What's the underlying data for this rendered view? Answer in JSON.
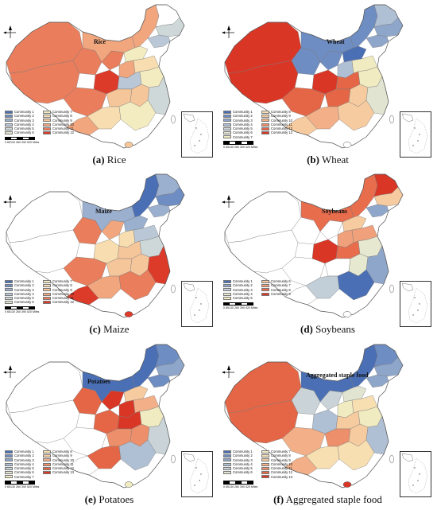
{
  "panels": [
    {
      "id": "a",
      "letter": "(a)",
      "name": "Rice",
      "map_title": "Rice",
      "legend": [
        {
          "label": "Community 1",
          "color": "#4a6fb5"
        },
        {
          "label": "Community 2",
          "color": "#6e8dc2"
        },
        {
          "label": "Community 3",
          "color": "#9bb0cf"
        },
        {
          "label": "Community 4",
          "color": "#b9c7d6"
        },
        {
          "label": "Community 5",
          "color": "#cfd8d9"
        },
        {
          "label": "Community 6",
          "color": "#e3e6cf"
        },
        {
          "label": "Community 7",
          "color": "#f3ecc0"
        },
        {
          "label": "Community 8",
          "color": "#f7ddb0"
        },
        {
          "label": "Community 9",
          "color": "#f6c69b"
        },
        {
          "label": "Community 10",
          "color": "#f1a67e"
        },
        {
          "label": "Community 11",
          "color": "#ea7d5b"
        },
        {
          "label": "Community 12",
          "color": "#dd3b2a"
        }
      ]
    },
    {
      "id": "b",
      "letter": "(b)",
      "name": "Wheat",
      "map_title": "Wheat",
      "legend": [
        {
          "label": "Community 1",
          "color": "#4a6fb5"
        },
        {
          "label": "Community 2",
          "color": "#6e8dc2"
        },
        {
          "label": "Community 3",
          "color": "#8fa6cb"
        },
        {
          "label": "Community 4",
          "color": "#b0c0d4"
        },
        {
          "label": "Community 5",
          "color": "#cad4d8"
        },
        {
          "label": "Community 6",
          "color": "#e1e4d0"
        },
        {
          "label": "Community 7",
          "color": "#f1ebc2"
        },
        {
          "label": "Community 8",
          "color": "#f7dfb2"
        },
        {
          "label": "Community 9",
          "color": "#f6cba0"
        },
        {
          "label": "Community 10",
          "color": "#f3b088"
        },
        {
          "label": "Community 11",
          "color": "#ed8f6a"
        },
        {
          "label": "Community 12",
          "color": "#e46646"
        },
        {
          "label": "Community 13",
          "color": "#d93626"
        }
      ]
    },
    {
      "id": "c",
      "letter": "(c)",
      "name": "Maize",
      "map_title": "Maize",
      "legend": [
        {
          "label": "Community 1",
          "color": "#4a6fb5"
        },
        {
          "label": "Community 2",
          "color": "#6e8dc2"
        },
        {
          "label": "Community 3",
          "color": "#9bb0cf"
        },
        {
          "label": "Community 4",
          "color": "#b9c7d6"
        },
        {
          "label": "Community 5",
          "color": "#cfd8d9"
        },
        {
          "label": "Community 6",
          "color": "#e3e6cf"
        },
        {
          "label": "Community 7",
          "color": "#f3ecc0"
        },
        {
          "label": "Community 8",
          "color": "#f7ddb0"
        },
        {
          "label": "Community 9",
          "color": "#f6c69b"
        },
        {
          "label": "Community 10",
          "color": "#f1a67e"
        },
        {
          "label": "Community 11",
          "color": "#ea7d5b"
        },
        {
          "label": "Community 12",
          "color": "#dd3b2a"
        }
      ]
    },
    {
      "id": "d",
      "letter": "(d)",
      "name": "Soybeans",
      "map_title": "Soybeans",
      "legend": [
        {
          "label": "Community 1",
          "color": "#4a6fb5"
        },
        {
          "label": "Community 2",
          "color": "#8fa6cb"
        },
        {
          "label": "Community 3",
          "color": "#c3cfd8"
        },
        {
          "label": "Community 4",
          "color": "#e6e8cf"
        },
        {
          "label": "Community 5",
          "color": "#f3ecc0"
        },
        {
          "label": "Community 6",
          "color": "#f6cba0"
        },
        {
          "label": "Community 7",
          "color": "#f0a07a"
        },
        {
          "label": "Community 8",
          "color": "#e76d4d"
        },
        {
          "label": "Community 9",
          "color": "#d93626"
        }
      ]
    },
    {
      "id": "e",
      "letter": "(e)",
      "name": "Potatoes",
      "map_title": "Potatoes",
      "legend": [
        {
          "label": "Community 1",
          "color": "#4a6fb5"
        },
        {
          "label": "Community 2",
          "color": "#6e8dc2"
        },
        {
          "label": "Community 3",
          "color": "#8fa6cb"
        },
        {
          "label": "Community 4",
          "color": "#b0c0d4"
        },
        {
          "label": "Community 5",
          "color": "#cad4d8"
        },
        {
          "label": "Community 6",
          "color": "#e1e4d0"
        },
        {
          "label": "Community 7",
          "color": "#f1ebc2"
        },
        {
          "label": "Community 8",
          "color": "#f7dfb2"
        },
        {
          "label": "Community 9",
          "color": "#f6cba0"
        },
        {
          "label": "Community 10",
          "color": "#f3b088"
        },
        {
          "label": "Community 11",
          "color": "#ed8f6a"
        },
        {
          "label": "Community 12",
          "color": "#e46646"
        },
        {
          "label": "Community 13",
          "color": "#d93626"
        }
      ]
    },
    {
      "id": "f",
      "letter": "(f)",
      "name": "Aggregated staple food",
      "map_title": "Aggregated staple food",
      "legend": [
        {
          "label": "Community 1",
          "color": "#4a6fb5"
        },
        {
          "label": "Community 2",
          "color": "#6e8dc2"
        },
        {
          "label": "Community 3",
          "color": "#8fa6cb"
        },
        {
          "label": "Community 4",
          "color": "#b0c0d4"
        },
        {
          "label": "Community 5",
          "color": "#cad4d8"
        },
        {
          "label": "Community 6",
          "color": "#e1e4d0"
        },
        {
          "label": "Community 7",
          "color": "#f1ebc2"
        },
        {
          "label": "Community 8",
          "color": "#f7dfb2"
        },
        {
          "label": "Community 9",
          "color": "#f6cba0"
        },
        {
          "label": "Community 10",
          "color": "#f3b088"
        },
        {
          "label": "Community 11",
          "color": "#ed8f6a"
        },
        {
          "label": "Community 12",
          "color": "#e46646"
        },
        {
          "label": "Community 13",
          "color": "#d93626"
        }
      ]
    }
  ],
  "scale": {
    "ticks": "0  65130   260   390   520",
    "unit": "Miles"
  },
  "north_arrow_icon": "north-arrow-icon"
}
